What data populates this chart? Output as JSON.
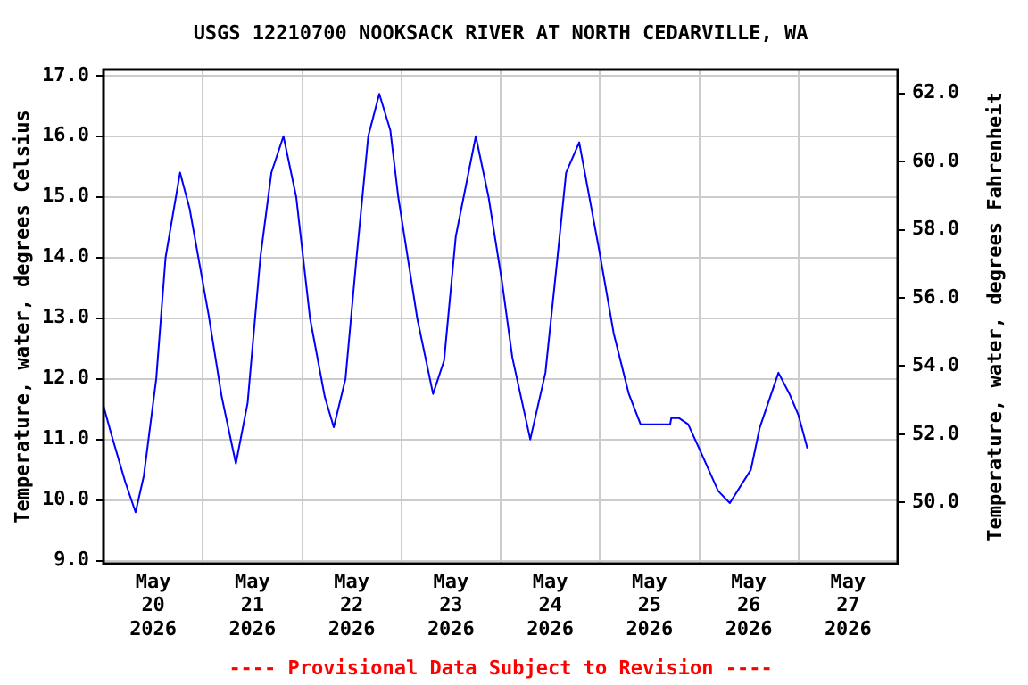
{
  "chart_data": {
    "type": "line",
    "title": "USGS 12210700 NOOKSACK RIVER AT NORTH CEDARVILLE, WA",
    "ylabel": "Temperature, water, degrees Celsius",
    "y2label": "Temperature, water, degrees Fahrenheit",
    "annotations": [
      "---- Provisional Data Subject to Revision ----"
    ],
    "x": [
      "2026-05-20T00:00",
      "2026-05-20T02:15",
      "2026-05-20T05:15",
      "2026-05-20T07:45",
      "2026-05-20T09:45",
      "2026-05-20T12:45",
      "2026-05-20T15:00",
      "2026-05-20T18:30",
      "2026-05-20T20:50",
      "2026-05-21T01:25",
      "2026-05-21T04:35",
      "2026-05-21T08:00",
      "2026-05-21T10:50",
      "2026-05-21T13:55",
      "2026-05-21T16:35",
      "2026-05-21T19:30",
      "2026-05-21T22:35",
      "2026-05-22T01:55",
      "2026-05-22T05:30",
      "2026-05-22T07:40",
      "2026-05-22T10:30",
      "2026-05-22T13:10",
      "2026-05-22T16:00",
      "2026-05-22T18:40",
      "2026-05-22T21:20",
      "2026-05-22T23:15",
      "2026-05-23T03:50",
      "2026-05-23T07:40",
      "2026-05-23T10:20",
      "2026-05-23T13:10",
      "2026-05-23T18:00",
      "2026-05-23T21:05",
      "2026-05-24T00:20",
      "2026-05-24T02:50",
      "2026-05-24T07:10",
      "2026-05-24T10:50",
      "2026-05-24T13:40",
      "2026-05-24T15:50",
      "2026-05-24T19:00",
      "2026-05-24T23:45",
      "2026-05-25T03:20",
      "2026-05-25T07:00",
      "2026-05-25T09:50",
      "2026-05-25T17:00",
      "2026-05-25T17:15",
      "2026-05-25T19:10",
      "2026-05-25T21:20",
      "2026-05-26T01:00",
      "2026-05-26T04:35",
      "2026-05-26T07:25",
      "2026-05-26T12:30",
      "2026-05-26T14:40",
      "2026-05-26T19:10",
      "2026-05-26T21:50",
      "2026-05-27T00:00",
      "2026-05-27T02:10"
    ],
    "series": [
      {
        "color": "#0000ff",
        "values": [
          11.55,
          11.0,
          10.3,
          9.8,
          10.4,
          12.0,
          14.0,
          15.4,
          14.8,
          13.05,
          11.7,
          10.6,
          11.6,
          14.0,
          15.4,
          16.0,
          15.0,
          13.0,
          11.7,
          11.2,
          12.0,
          14.0,
          16.0,
          16.7,
          16.1,
          15.0,
          13.0,
          11.75,
          12.3,
          14.35,
          16.0,
          15.0,
          13.6,
          12.35,
          11.0,
          12.1,
          13.95,
          15.4,
          15.9,
          14.15,
          12.75,
          11.75,
          11.25,
          11.25,
          11.35,
          11.35,
          11.25,
          10.7,
          10.15,
          9.95,
          10.5,
          11.2,
          12.1,
          11.75,
          11.4,
          10.85
        ]
      }
    ],
    "xlim": [
      "2026-05-20",
      "2026-05-28"
    ],
    "xticks": [
      {
        "value": "2026-05-20T12:00",
        "label": "May\n20\n2026"
      },
      {
        "value": "2026-05-21T12:00",
        "label": "May\n21\n2026"
      },
      {
        "value": "2026-05-22T12:00",
        "label": "May\n22\n2026"
      },
      {
        "value": "2026-05-23T12:00",
        "label": "May\n23\n2026"
      },
      {
        "value": "2026-05-24T12:00",
        "label": "May\n24\n2026"
      },
      {
        "value": "2026-05-25T12:00",
        "label": "May\n25\n2026"
      },
      {
        "value": "2026-05-26T12:00",
        "label": "May\n26\n2026"
      },
      {
        "value": "2026-05-27T12:00",
        "label": "May\n27\n2026"
      },
      {
        "value": "2026-05-21",
        "label": null
      },
      {
        "value": "2026-05-22",
        "label": null
      },
      {
        "value": "2026-05-23",
        "label": null
      },
      {
        "value": "2026-05-24",
        "label": null
      },
      {
        "value": "2026-05-25",
        "label": null
      },
      {
        "value": "2026-05-26",
        "label": null
      },
      {
        "value": "2026-05-27",
        "label": null
      }
    ],
    "ylim": [
      8.95,
      17.1
    ],
    "yticks": [
      {
        "value": 9,
        "label": "9.0"
      },
      {
        "value": 10,
        "label": "10.0"
      },
      {
        "value": 11,
        "label": "11.0"
      },
      {
        "value": 12,
        "label": "12.0"
      },
      {
        "value": 13,
        "label": "13.0"
      },
      {
        "value": 14,
        "label": "14.0"
      },
      {
        "value": 15,
        "label": "15.0"
      },
      {
        "value": 16,
        "label": "16.0"
      },
      {
        "value": 17,
        "label": "17.0"
      }
    ],
    "y2lim": [
      48.2,
      62.7
    ],
    "y2ticks": [
      {
        "value": 50,
        "label": "50.0"
      },
      {
        "value": 52,
        "label": "52.0"
      },
      {
        "value": 54,
        "label": "54.0"
      },
      {
        "value": 56,
        "label": "56.0"
      },
      {
        "value": 58,
        "label": "58.0"
      },
      {
        "value": 60,
        "label": "60.0"
      },
      {
        "value": 62,
        "label": "62.0"
      }
    ],
    "grid": true,
    "legend": false
  }
}
